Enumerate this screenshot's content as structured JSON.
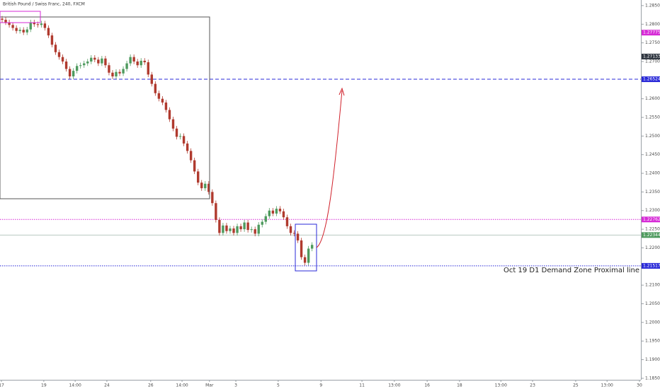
{
  "chart_data": {
    "type": "candlestick",
    "title": "British Pound / Swiss Franc, 240, FXCM",
    "annotation": "Oct 19 D1 Demand Zone Proximal line",
    "up_color": "#4e9a5e",
    "down_color": "#b03a2e",
    "x": [
      0,
      1,
      2,
      3,
      4,
      5,
      6,
      7,
      8,
      9,
      10,
      11,
      12,
      13,
      14,
      15,
      16,
      17,
      18,
      19,
      20,
      21,
      22,
      23,
      24,
      25,
      26,
      27,
      28,
      29,
      30,
      31,
      32,
      33,
      34,
      35,
      36,
      37,
      38,
      39,
      40,
      41,
      42,
      43,
      44,
      45,
      46,
      47,
      48,
      49,
      50,
      51,
      52,
      53,
      54,
      55,
      56,
      57,
      58,
      59,
      60,
      61,
      62,
      63,
      64,
      65,
      66,
      67,
      68,
      69,
      70,
      71,
      72,
      73,
      74,
      75,
      76,
      77,
      78,
      79,
      80,
      81,
      82,
      83,
      84,
      85,
      86,
      87
    ],
    "open": [
      1.2815,
      1.2812,
      1.2805,
      1.2798,
      1.279,
      1.2782,
      1.2785,
      1.2778,
      1.2786,
      1.2805,
      1.28,
      1.2798,
      1.2802,
      1.279,
      1.277,
      1.2745,
      1.2725,
      1.2712,
      1.27,
      1.268,
      1.266,
      1.2675,
      1.2688,
      1.269,
      1.2695,
      1.27,
      1.271,
      1.2705,
      1.2695,
      1.2708,
      1.269,
      1.267,
      1.266,
      1.2672,
      1.2668,
      1.268,
      1.2695,
      1.2712,
      1.27,
      1.269,
      1.2702,
      1.2698,
      1.2665,
      1.264,
      1.2615,
      1.26,
      1.259,
      1.257,
      1.2545,
      1.252,
      1.2498,
      1.25,
      1.248,
      1.246,
      1.2435,
      1.2405,
      1.2375,
      1.236,
      1.2372,
      1.235,
      1.232,
      1.2275,
      1.224,
      1.226,
      1.2245,
      1.2252,
      1.224,
      1.2258,
      1.225,
      1.2268,
      1.2248,
      1.225,
      1.2238,
      1.2262,
      1.227,
      1.2285,
      1.23,
      1.2292,
      1.2305,
      1.2298,
      1.2282,
      1.2258,
      1.224,
      1.2238,
      1.222,
      1.2175,
      1.216,
      1.2198
    ],
    "high": [
      1.2822,
      1.2819,
      1.2812,
      1.2805,
      1.2797,
      1.2792,
      1.2792,
      1.2793,
      1.2812,
      1.2812,
      1.2807,
      1.2809,
      1.2809,
      1.2797,
      1.2777,
      1.2752,
      1.2732,
      1.2719,
      1.2707,
      1.2687,
      1.2682,
      1.2695,
      1.2697,
      1.2702,
      1.2707,
      1.2717,
      1.2717,
      1.2712,
      1.2715,
      1.2715,
      1.2697,
      1.2677,
      1.2679,
      1.2679,
      1.2687,
      1.2702,
      1.2719,
      1.2719,
      1.2707,
      1.2709,
      1.2709,
      1.2705,
      1.2672,
      1.2647,
      1.2622,
      1.2607,
      1.2597,
      1.2577,
      1.2552,
      1.2527,
      1.2507,
      1.2507,
      1.2487,
      1.2467,
      1.2442,
      1.2412,
      1.2382,
      1.2379,
      1.2379,
      1.2357,
      1.2327,
      1.2282,
      1.2267,
      1.2267,
      1.2259,
      1.2259,
      1.2265,
      1.2265,
      1.2275,
      1.2275,
      1.2257,
      1.2257,
      1.2269,
      1.2277,
      1.2292,
      1.2307,
      1.2307,
      1.2312,
      1.2312,
      1.2305,
      1.2289,
      1.2265,
      1.2247,
      1.2245,
      1.2227,
      1.2182,
      1.2205,
      1.2215
    ],
    "low": [
      1.2805,
      1.2798,
      1.2791,
      1.2783,
      1.2775,
      1.2775,
      1.2771,
      1.2771,
      1.2779,
      1.2793,
      1.2791,
      1.2791,
      1.2783,
      1.2763,
      1.2738,
      1.2718,
      1.2705,
      1.2693,
      1.2673,
      1.2653,
      1.2653,
      1.2668,
      1.2681,
      1.2683,
      1.2688,
      1.2693,
      1.2698,
      1.2688,
      1.2688,
      1.2683,
      1.2663,
      1.2653,
      1.2653,
      1.2661,
      1.2661,
      1.2673,
      1.2688,
      1.2693,
      1.2683,
      1.2683,
      1.2691,
      1.2658,
      1.2633,
      1.2608,
      1.2593,
      1.2583,
      1.2563,
      1.2538,
      1.2513,
      1.2491,
      1.2491,
      1.2473,
      1.2453,
      1.2428,
      1.2398,
      1.2368,
      1.2353,
      1.2353,
      1.2343,
      1.2313,
      1.2268,
      1.2233,
      1.2233,
      1.2238,
      1.2238,
      1.2233,
      1.2233,
      1.2243,
      1.2243,
      1.2241,
      1.2241,
      1.2231,
      1.2231,
      1.2255,
      1.2263,
      1.2278,
      1.2285,
      1.2285,
      1.2291,
      1.2275,
      1.2251,
      1.2233,
      1.2231,
      1.2213,
      1.2168,
      1.2153,
      1.2153,
      1.2191
    ],
    "close": [
      1.2812,
      1.2805,
      1.2798,
      1.279,
      1.2782,
      1.2785,
      1.2778,
      1.2786,
      1.2805,
      1.28,
      1.2798,
      1.2802,
      1.279,
      1.277,
      1.2745,
      1.2725,
      1.2712,
      1.27,
      1.268,
      1.266,
      1.2675,
      1.2688,
      1.269,
      1.2695,
      1.27,
      1.271,
      1.2705,
      1.2695,
      1.2708,
      1.269,
      1.267,
      1.266,
      1.2672,
      1.2668,
      1.268,
      1.2695,
      1.2712,
      1.27,
      1.269,
      1.2702,
      1.2698,
      1.2665,
      1.264,
      1.2615,
      1.26,
      1.259,
      1.257,
      1.2545,
      1.252,
      1.2498,
      1.25,
      1.248,
      1.246,
      1.2435,
      1.2405,
      1.2375,
      1.236,
      1.2372,
      1.235,
      1.232,
      1.2275,
      1.224,
      1.226,
      1.2245,
      1.2252,
      1.224,
      1.2258,
      1.225,
      1.2268,
      1.2248,
      1.225,
      1.2238,
      1.2262,
      1.227,
      1.2285,
      1.23,
      1.2292,
      1.2305,
      1.2298,
      1.2282,
      1.2258,
      1.224,
      1.2238,
      1.222,
      1.2175,
      1.216,
      1.2198,
      1.2208
    ],
    "xlim": [
      -0.6,
      179.3
    ],
    "xticks": [
      {
        "value": -0.2,
        "label": "17"
      },
      {
        "value": 11.7,
        "label": "19"
      },
      {
        "value": 20.5,
        "label": "14:00"
      },
      {
        "value": 29.4,
        "label": "24"
      },
      {
        "value": 41.7,
        "label": "26"
      },
      {
        "value": 50.5,
        "label": "14:00"
      },
      {
        "value": 58.2,
        "label": "Mar"
      },
      {
        "value": 65.6,
        "label": "3"
      },
      {
        "value": 77.5,
        "label": "5"
      },
      {
        "value": 89.5,
        "label": "9"
      },
      {
        "value": 101,
        "label": "11"
      },
      {
        "value": 110.1,
        "label": "13:00"
      },
      {
        "value": 119.3,
        "label": "16"
      },
      {
        "value": 128.4,
        "label": "18"
      },
      {
        "value": 140,
        "label": "13:00"
      },
      {
        "value": 148.9,
        "label": "23"
      },
      {
        "value": 161,
        "label": "25"
      },
      {
        "value": 169.8,
        "label": "13:00"
      },
      {
        "value": 178.9,
        "label": "30"
      }
    ],
    "ylim": [
      1.1846,
      1.2865
    ],
    "yticks": [
      {
        "value": 1.185,
        "label": "1.18500"
      },
      {
        "value": 1.19,
        "label": "1.19000"
      },
      {
        "value": 1.195,
        "label": "1.19500"
      },
      {
        "value": 1.2,
        "label": "1.20000"
      },
      {
        "value": 1.205,
        "label": "1.20500"
      },
      {
        "value": 1.21,
        "label": "1.21000"
      },
      {
        "value": 1.215,
        "label": "1.21500"
      },
      {
        "value": 1.22,
        "label": "1.22000"
      },
      {
        "value": 1.225,
        "label": "1.22500"
      },
      {
        "value": 1.23,
        "label": "1.23000"
      },
      {
        "value": 1.235,
        "label": "1.23500"
      },
      {
        "value": 1.24,
        "label": "1.24000"
      },
      {
        "value": 1.245,
        "label": "1.24500"
      },
      {
        "value": 1.25,
        "label": "1.25000"
      },
      {
        "value": 1.255,
        "label": "1.25500"
      },
      {
        "value": 1.26,
        "label": "1.26000"
      },
      {
        "value": 1.265,
        "label": "1.26500"
      },
      {
        "value": 1.27,
        "label": "1.27000"
      },
      {
        "value": 1.275,
        "label": "1.27500"
      },
      {
        "value": 1.28,
        "label": "1.28000"
      },
      {
        "value": 1.285,
        "label": "1.28500"
      }
    ],
    "levels": [
      {
        "value": 1.26524,
        "color": "#2a2ad8",
        "style": "dashed"
      },
      {
        "value": 1.22762,
        "color": "#d62ad6",
        "style": "dotted"
      },
      {
        "value": 1.22344,
        "color": "#b9c9c0",
        "style": "solid"
      },
      {
        "value": 1.21517,
        "color": "#2a2ad8",
        "style": "dotted"
      }
    ],
    "price_labels": [
      {
        "value": 1.27775,
        "color": "#d62ad6"
      },
      {
        "value": 1.27133,
        "color": "#2f3640"
      },
      {
        "value": 1.26524,
        "color": "#2a2ad8"
      },
      {
        "value": 1.22762,
        "color": "#d62ad6"
      },
      {
        "value": 1.22344,
        "color": "#4e9a5e"
      },
      {
        "value": 1.21517,
        "color": "#2a2ad8"
      }
    ]
  }
}
